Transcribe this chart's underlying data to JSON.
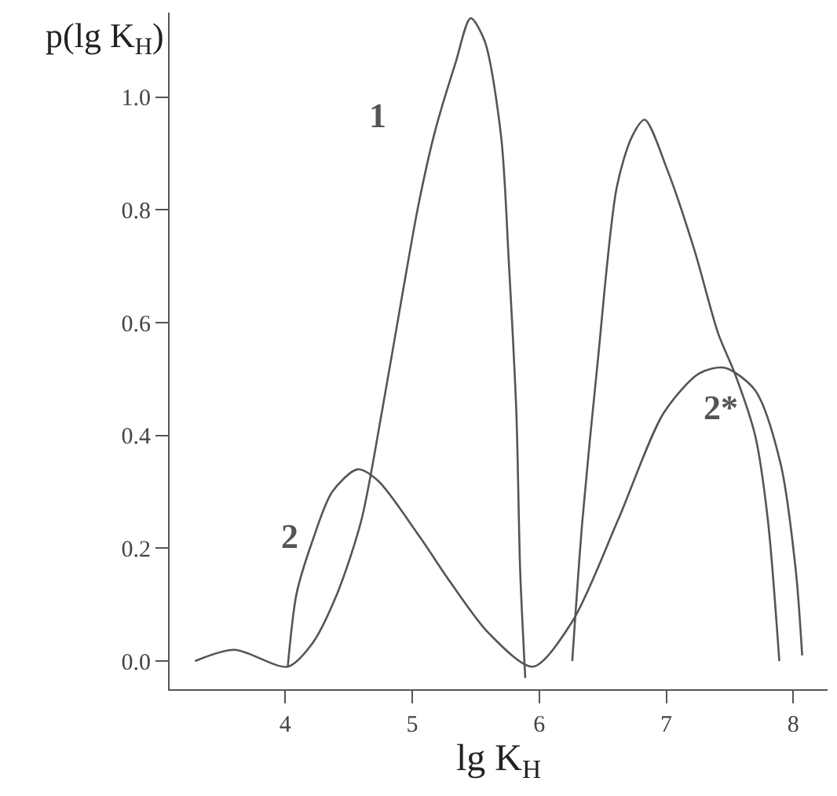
{
  "chart_data": {
    "type": "line",
    "xlabel": "lg K$_{H}$",
    "ylabel": "p(lg K$_{H}$)",
    "xlim": [
      3.09,
      8.27
    ],
    "ylim": [
      -0.05,
      1.15
    ],
    "xticks": [
      4,
      5,
      6,
      7,
      8
    ],
    "yticks": [
      {
        "value": 0,
        "label": "0.0"
      },
      {
        "value": 0.2,
        "label": "0.2"
      },
      {
        "value": 0.4,
        "label": "0.4"
      },
      {
        "value": 0.6,
        "label": "0.6"
      },
      {
        "value": 0.8,
        "label": "0.8"
      },
      {
        "value": 1.0,
        "label": "1.0"
      }
    ],
    "legend": false,
    "marker": "none",
    "line_style": "solid",
    "series": [
      {
        "name": "1",
        "color": "#555555",
        "x": [
          3.29,
          3.6,
          4.02,
          4.21,
          4.41,
          4.6,
          4.76,
          4.93,
          5.05,
          5.18,
          5.34,
          5.46,
          5.57,
          5.7,
          5.76,
          5.82,
          5.85,
          5.89
        ],
        "values": [
          0.0,
          0.02,
          -0.01,
          0.03,
          0.12,
          0.25,
          0.44,
          0.66,
          0.81,
          0.94,
          1.06,
          1.14,
          1.1,
          0.93,
          0.71,
          0.44,
          0.16,
          -0.03
        ]
      },
      {
        "name": "2",
        "color": "#555555",
        "x": [
          4.02,
          4.09,
          4.21,
          4.37,
          4.57,
          4.73,
          5.06,
          5.3,
          5.6,
          5.95,
          6.26,
          6.62,
          6.98,
          7.26,
          7.46,
          7.7,
          7.9,
          8.02,
          8.07
        ],
        "values": [
          -0.01,
          0.12,
          0.21,
          0.3,
          0.34,
          0.32,
          0.22,
          0.14,
          0.05,
          -0.01,
          0.07,
          0.25,
          0.44,
          0.51,
          0.52,
          0.48,
          0.35,
          0.16,
          0.01
        ]
      },
      {
        "name": "2*",
        "color": "#555555",
        "x": [
          6.26,
          6.34,
          6.46,
          6.61,
          6.73,
          6.83,
          7.01,
          7.22,
          7.41,
          7.54,
          7.7,
          7.8,
          7.89
        ],
        "values": [
          0.0,
          0.25,
          0.53,
          0.84,
          0.93,
          0.96,
          0.87,
          0.73,
          0.58,
          0.51,
          0.4,
          0.25,
          0.0
        ]
      }
    ]
  }
}
